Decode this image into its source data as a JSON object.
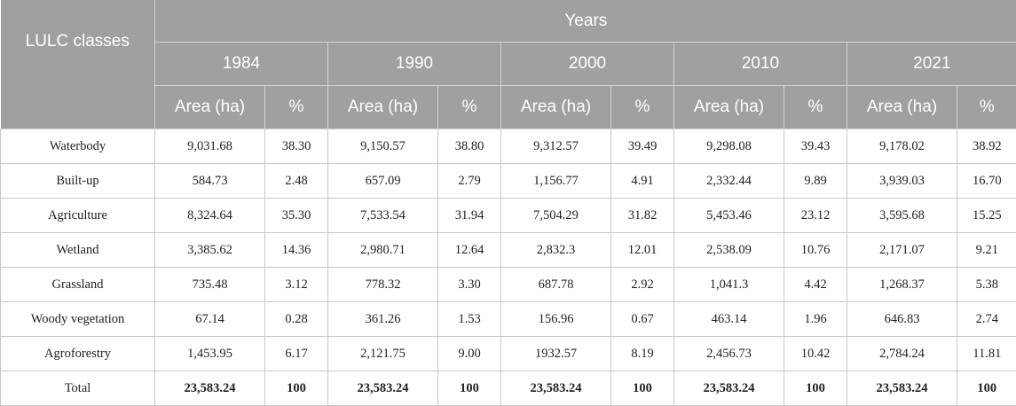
{
  "table": {
    "class_header": "LULC classes",
    "years_header": "Years",
    "years": [
      "1984",
      "1990",
      "2000",
      "2010",
      "2021"
    ],
    "sub_headers": {
      "area": "Area (ha)",
      "pct": "%"
    },
    "rows": [
      {
        "cls": "Waterbody",
        "v": [
          "9,031.68",
          "38.30",
          "9,150.57",
          "38.80",
          "9,312.57",
          "39.49",
          "9,298.08",
          "39.43",
          "9,178.02",
          "38.92"
        ]
      },
      {
        "cls": "Built-up",
        "v": [
          "584.73",
          "2.48",
          "657.09",
          "2.79",
          "1,156.77",
          "4.91",
          "2,332.44",
          "9.89",
          "3,939.03",
          "16.70"
        ]
      },
      {
        "cls": "Agriculture",
        "v": [
          "8,324.64",
          "35.30",
          "7,533.54",
          "31.94",
          "7,504.29",
          "31.82",
          "5,453.46",
          "23.12",
          "3,595.68",
          "15.25"
        ]
      },
      {
        "cls": "Wetland",
        "v": [
          "3,385.62",
          "14.36",
          "2,980.71",
          "12.64",
          "2,832.3",
          "12.01",
          "2,538.09",
          "10.76",
          "2,171.07",
          "9.21"
        ]
      },
      {
        "cls": "Grassland",
        "v": [
          "735.48",
          "3.12",
          "778.32",
          "3.30",
          "687.78",
          "2.92",
          "1,041.3",
          "4.42",
          "1,268.37",
          "5.38"
        ]
      },
      {
        "cls": "Woody vegetation",
        "v": [
          "67.14",
          "0.28",
          "361.26",
          "1.53",
          "156.96",
          "0.67",
          "463.14",
          "1.96",
          "646.83",
          "2.74"
        ]
      },
      {
        "cls": "Agroforestry",
        "v": [
          "1,453.95",
          "6.17",
          "2,121.75",
          "9.00",
          "1932.57",
          "8.19",
          "2,456.73",
          "10.42",
          "2,784.24",
          "11.81"
        ]
      },
      {
        "cls": "Total",
        "v": [
          "23,583.24",
          "100",
          "23,583.24",
          "100",
          "23,583.24",
          "100",
          "23,583.24",
          "100",
          "23,583.24",
          "100"
        ]
      }
    ]
  }
}
